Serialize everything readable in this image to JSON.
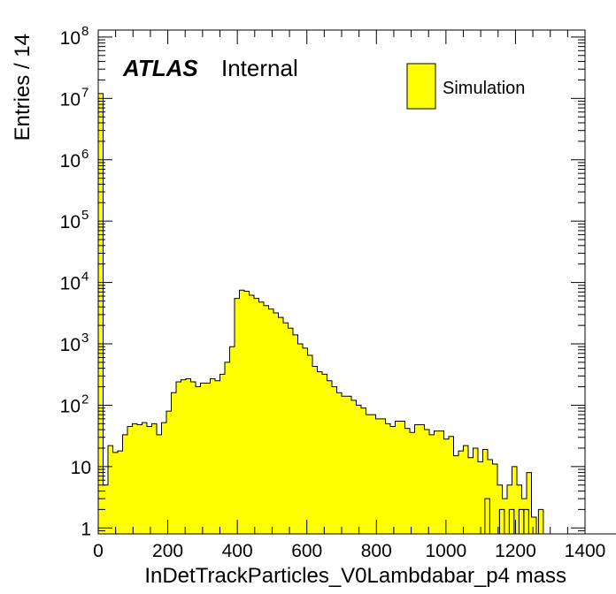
{
  "chart_data": {
    "type": "bar",
    "style": "histogram",
    "y_scale": "log",
    "xlim": [
      0,
      1400
    ],
    "ylim": [
      0.8,
      130000000
    ],
    "bin_width": 14,
    "xlabel": "InDetTrackParticles_V0Lambdabar_p4 mass",
    "ylabel": "Entries / 14",
    "x_tick_labels": [
      "0",
      "200",
      "400",
      "600",
      "800",
      "1000",
      "1200",
      "1400"
    ],
    "y_tick_labels": [
      {
        "value": 1,
        "base": "1",
        "exp": ""
      },
      {
        "value": 10,
        "base": "10",
        "exp": ""
      },
      {
        "value": 100,
        "base": "10",
        "exp": "2"
      },
      {
        "value": 1000,
        "base": "10",
        "exp": "3"
      },
      {
        "value": 10000,
        "base": "10",
        "exp": "4"
      },
      {
        "value": 100000,
        "base": "10",
        "exp": "5"
      },
      {
        "value": 1000000,
        "base": "10",
        "exp": "6"
      },
      {
        "value": 10000000,
        "base": "10",
        "exp": "7"
      },
      {
        "value": 100000000,
        "base": "10",
        "exp": "8"
      }
    ],
    "atlas_label": "ATLAS",
    "atlas_sublabel": "Internal",
    "legend": [
      {
        "name": "Simulation",
        "color": "#ffff00"
      }
    ],
    "legend_position": "top-right",
    "fill_color": "#ffff00",
    "line_color": "#000000",
    "series": [
      {
        "name": "Simulation",
        "values": [
          12000000,
          5,
          22,
          17,
          18,
          33,
          45,
          50,
          48,
          52,
          45,
          50,
          33,
          52,
          80,
          160,
          240,
          260,
          270,
          240,
          200,
          230,
          230,
          270,
          250,
          320,
          500,
          900,
          5500,
          7500,
          7200,
          6200,
          5500,
          4800,
          4200,
          3700,
          3200,
          2700,
          2200,
          1800,
          1400,
          1000,
          850,
          650,
          430,
          350,
          320,
          250,
          200,
          160,
          140,
          140,
          120,
          100,
          90,
          70,
          70,
          60,
          60,
          50,
          45,
          55,
          55,
          42,
          36,
          48,
          48,
          40,
          33,
          38,
          38,
          28,
          31,
          15,
          18,
          22,
          14,
          20,
          12,
          19,
          13,
          11,
          5,
          3,
          5,
          10,
          5,
          3,
          8,
          1.5,
          0,
          0,
          0,
          0,
          0,
          0,
          0,
          0,
          0,
          0,
          0,
          0,
          0,
          0,
          0,
          0,
          0,
          0,
          0,
          0,
          0,
          0,
          0,
          0,
          0,
          0,
          0,
          0,
          0,
          0,
          0,
          0,
          0,
          0,
          0,
          0,
          0,
          0,
          0,
          0,
          0,
          0,
          0,
          0,
          0,
          0,
          0,
          0,
          0,
          0,
          0
        ],
        "isolated_bins": [
          {
            "x": 1112,
            "value": 3
          },
          {
            "x": 1154,
            "value": 2
          },
          {
            "x": 1182,
            "value": 2
          },
          {
            "x": 1210,
            "value": 2
          },
          {
            "x": 1224,
            "value": 2
          },
          {
            "x": 1266,
            "value": 2
          }
        ]
      }
    ]
  }
}
